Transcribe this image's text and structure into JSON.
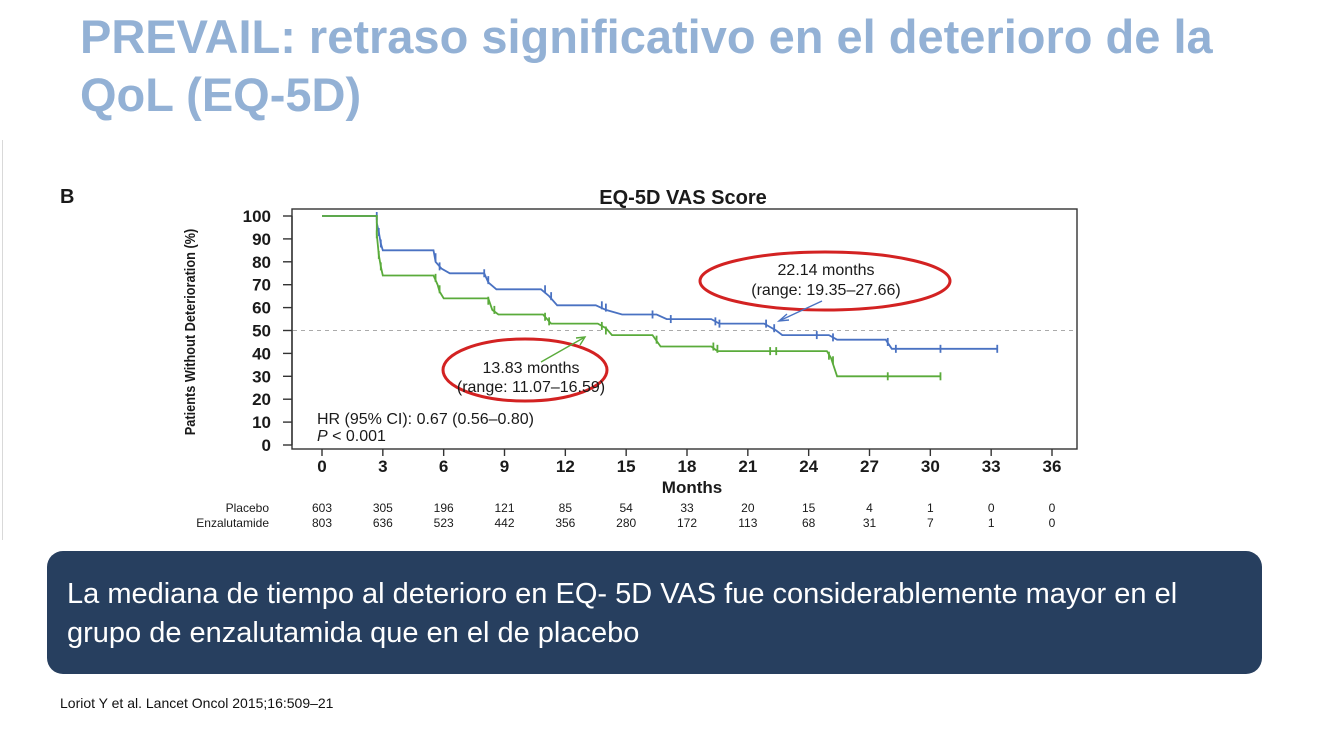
{
  "slide": {
    "title": "PREVAIL: retraso significativo en el deterioro de la QoL (EQ-5D)",
    "callout": "La mediana de tiempo  al deterioro  en EQ- 5D VAS fue considerablemente mayor en el grupo de enzalutamida que en el de placebo",
    "citation": "Loriot Y et al. Lancet Oncol 2015;16:509–21"
  },
  "chart_data": {
    "type": "line",
    "panel_label": "B",
    "title": "EQ-5D VAS Score",
    "xlabel": "Months",
    "ylabel": "Patients Without Deterioration (%)",
    "xlim": [
      0,
      36
    ],
    "ylim": [
      0,
      100
    ],
    "x_ticks": [
      0,
      3,
      6,
      9,
      12,
      15,
      18,
      21,
      24,
      27,
      30,
      33,
      36
    ],
    "y_ticks": [
      0,
      10,
      20,
      30,
      40,
      50,
      60,
      70,
      80,
      90,
      100
    ],
    "reference_line": {
      "y": 50,
      "style": "dashed"
    },
    "grid": false,
    "series": [
      {
        "name": "Enzalutamide",
        "color": "#4a72c2",
        "step_points": [
          [
            0,
            100
          ],
          [
            2.7,
            100
          ],
          [
            2.7,
            97
          ],
          [
            2.8,
            93
          ],
          [
            2.9,
            88
          ],
          [
            3.0,
            85
          ],
          [
            5.5,
            85
          ],
          [
            5.6,
            80
          ],
          [
            5.9,
            77
          ],
          [
            6.3,
            75
          ],
          [
            8.0,
            75
          ],
          [
            8.2,
            71
          ],
          [
            8.6,
            68
          ],
          [
            10.8,
            68
          ],
          [
            11.2,
            65
          ],
          [
            11.6,
            61
          ],
          [
            13.5,
            61
          ],
          [
            14.0,
            59
          ],
          [
            14.8,
            57
          ],
          [
            16.5,
            57
          ],
          [
            17.0,
            55
          ],
          [
            19.2,
            55
          ],
          [
            19.6,
            53
          ],
          [
            21.8,
            53
          ],
          [
            22.4,
            50
          ],
          [
            22.7,
            48
          ],
          [
            25.0,
            48
          ],
          [
            25.4,
            46
          ],
          [
            27.8,
            46
          ],
          [
            28.1,
            42
          ],
          [
            33.3,
            42
          ]
        ],
        "censor_marks": [
          [
            2.7,
            100
          ],
          [
            2.8,
            93
          ],
          [
            2.9,
            88
          ],
          [
            5.6,
            82
          ],
          [
            5.8,
            78
          ],
          [
            8.0,
            75
          ],
          [
            8.2,
            72
          ],
          [
            11.0,
            68
          ],
          [
            11.3,
            65
          ],
          [
            13.8,
            61
          ],
          [
            14.0,
            60
          ],
          [
            16.3,
            57
          ],
          [
            17.2,
            55
          ],
          [
            19.4,
            54
          ],
          [
            19.6,
            53
          ],
          [
            21.9,
            53
          ],
          [
            22.3,
            51
          ],
          [
            24.4,
            48
          ],
          [
            25.2,
            47
          ],
          [
            27.9,
            45
          ],
          [
            28.3,
            42
          ],
          [
            30.5,
            42
          ],
          [
            33.3,
            42
          ]
        ]
      },
      {
        "name": "Placebo",
        "color": "#5aab3b",
        "step_points": [
          [
            0,
            100
          ],
          [
            2.7,
            100
          ],
          [
            2.7,
            92
          ],
          [
            2.8,
            83
          ],
          [
            2.9,
            78
          ],
          [
            3.0,
            74
          ],
          [
            5.5,
            74
          ],
          [
            5.7,
            70
          ],
          [
            5.8,
            67
          ],
          [
            6.0,
            64
          ],
          [
            8.2,
            64
          ],
          [
            8.4,
            59
          ],
          [
            8.7,
            57
          ],
          [
            10.9,
            57
          ],
          [
            11.1,
            55
          ],
          [
            11.3,
            53
          ],
          [
            13.6,
            53
          ],
          [
            14.0,
            51
          ],
          [
            14.3,
            48
          ],
          [
            16.3,
            48
          ],
          [
            16.7,
            43
          ],
          [
            19.2,
            43
          ],
          [
            19.5,
            41
          ],
          [
            22.0,
            41
          ],
          [
            24.9,
            41
          ],
          [
            25.1,
            38
          ],
          [
            25.4,
            30
          ],
          [
            30.5,
            30
          ]
        ],
        "censor_marks": [
          [
            2.7,
            92
          ],
          [
            2.8,
            83
          ],
          [
            2.9,
            78
          ],
          [
            5.6,
            73
          ],
          [
            5.8,
            68
          ],
          [
            8.2,
            63
          ],
          [
            8.5,
            59
          ],
          [
            11.0,
            56
          ],
          [
            11.2,
            54
          ],
          [
            13.8,
            52
          ],
          [
            14.0,
            50
          ],
          [
            16.5,
            46
          ],
          [
            19.3,
            43
          ],
          [
            19.5,
            42
          ],
          [
            22.1,
            41
          ],
          [
            22.4,
            41
          ],
          [
            25.0,
            39
          ],
          [
            25.2,
            37
          ],
          [
            27.9,
            30
          ],
          [
            30.5,
            30
          ]
        ]
      }
    ],
    "annotations": [
      {
        "text_line1": "22.14 months",
        "text_line2": "(range: 19.35–27.66)",
        "median_x": 22.14,
        "highlight_color": "#d32222"
      },
      {
        "text_line1": "13.83 months",
        "text_line2": "(range: 11.07–16.59)",
        "median_x": 13.83,
        "highlight_color": "#d32222"
      }
    ],
    "hr_text": "HR (95% CI): 0.67 (0.56–0.80)",
    "p_text_italic": "P",
    "p_text_rest": " < 0.001",
    "risk_table": {
      "times": [
        0,
        3,
        6,
        9,
        12,
        15,
        18,
        21,
        24,
        27,
        30,
        33,
        36
      ],
      "rows": [
        {
          "label": "Placebo",
          "values": [
            603,
            305,
            196,
            121,
            85,
            54,
            33,
            20,
            15,
            4,
            1,
            0,
            0
          ]
        },
        {
          "label": "Enzalutamide",
          "values": [
            803,
            636,
            523,
            442,
            356,
            280,
            172,
            113,
            68,
            31,
            7,
            1,
            0
          ]
        }
      ]
    }
  }
}
